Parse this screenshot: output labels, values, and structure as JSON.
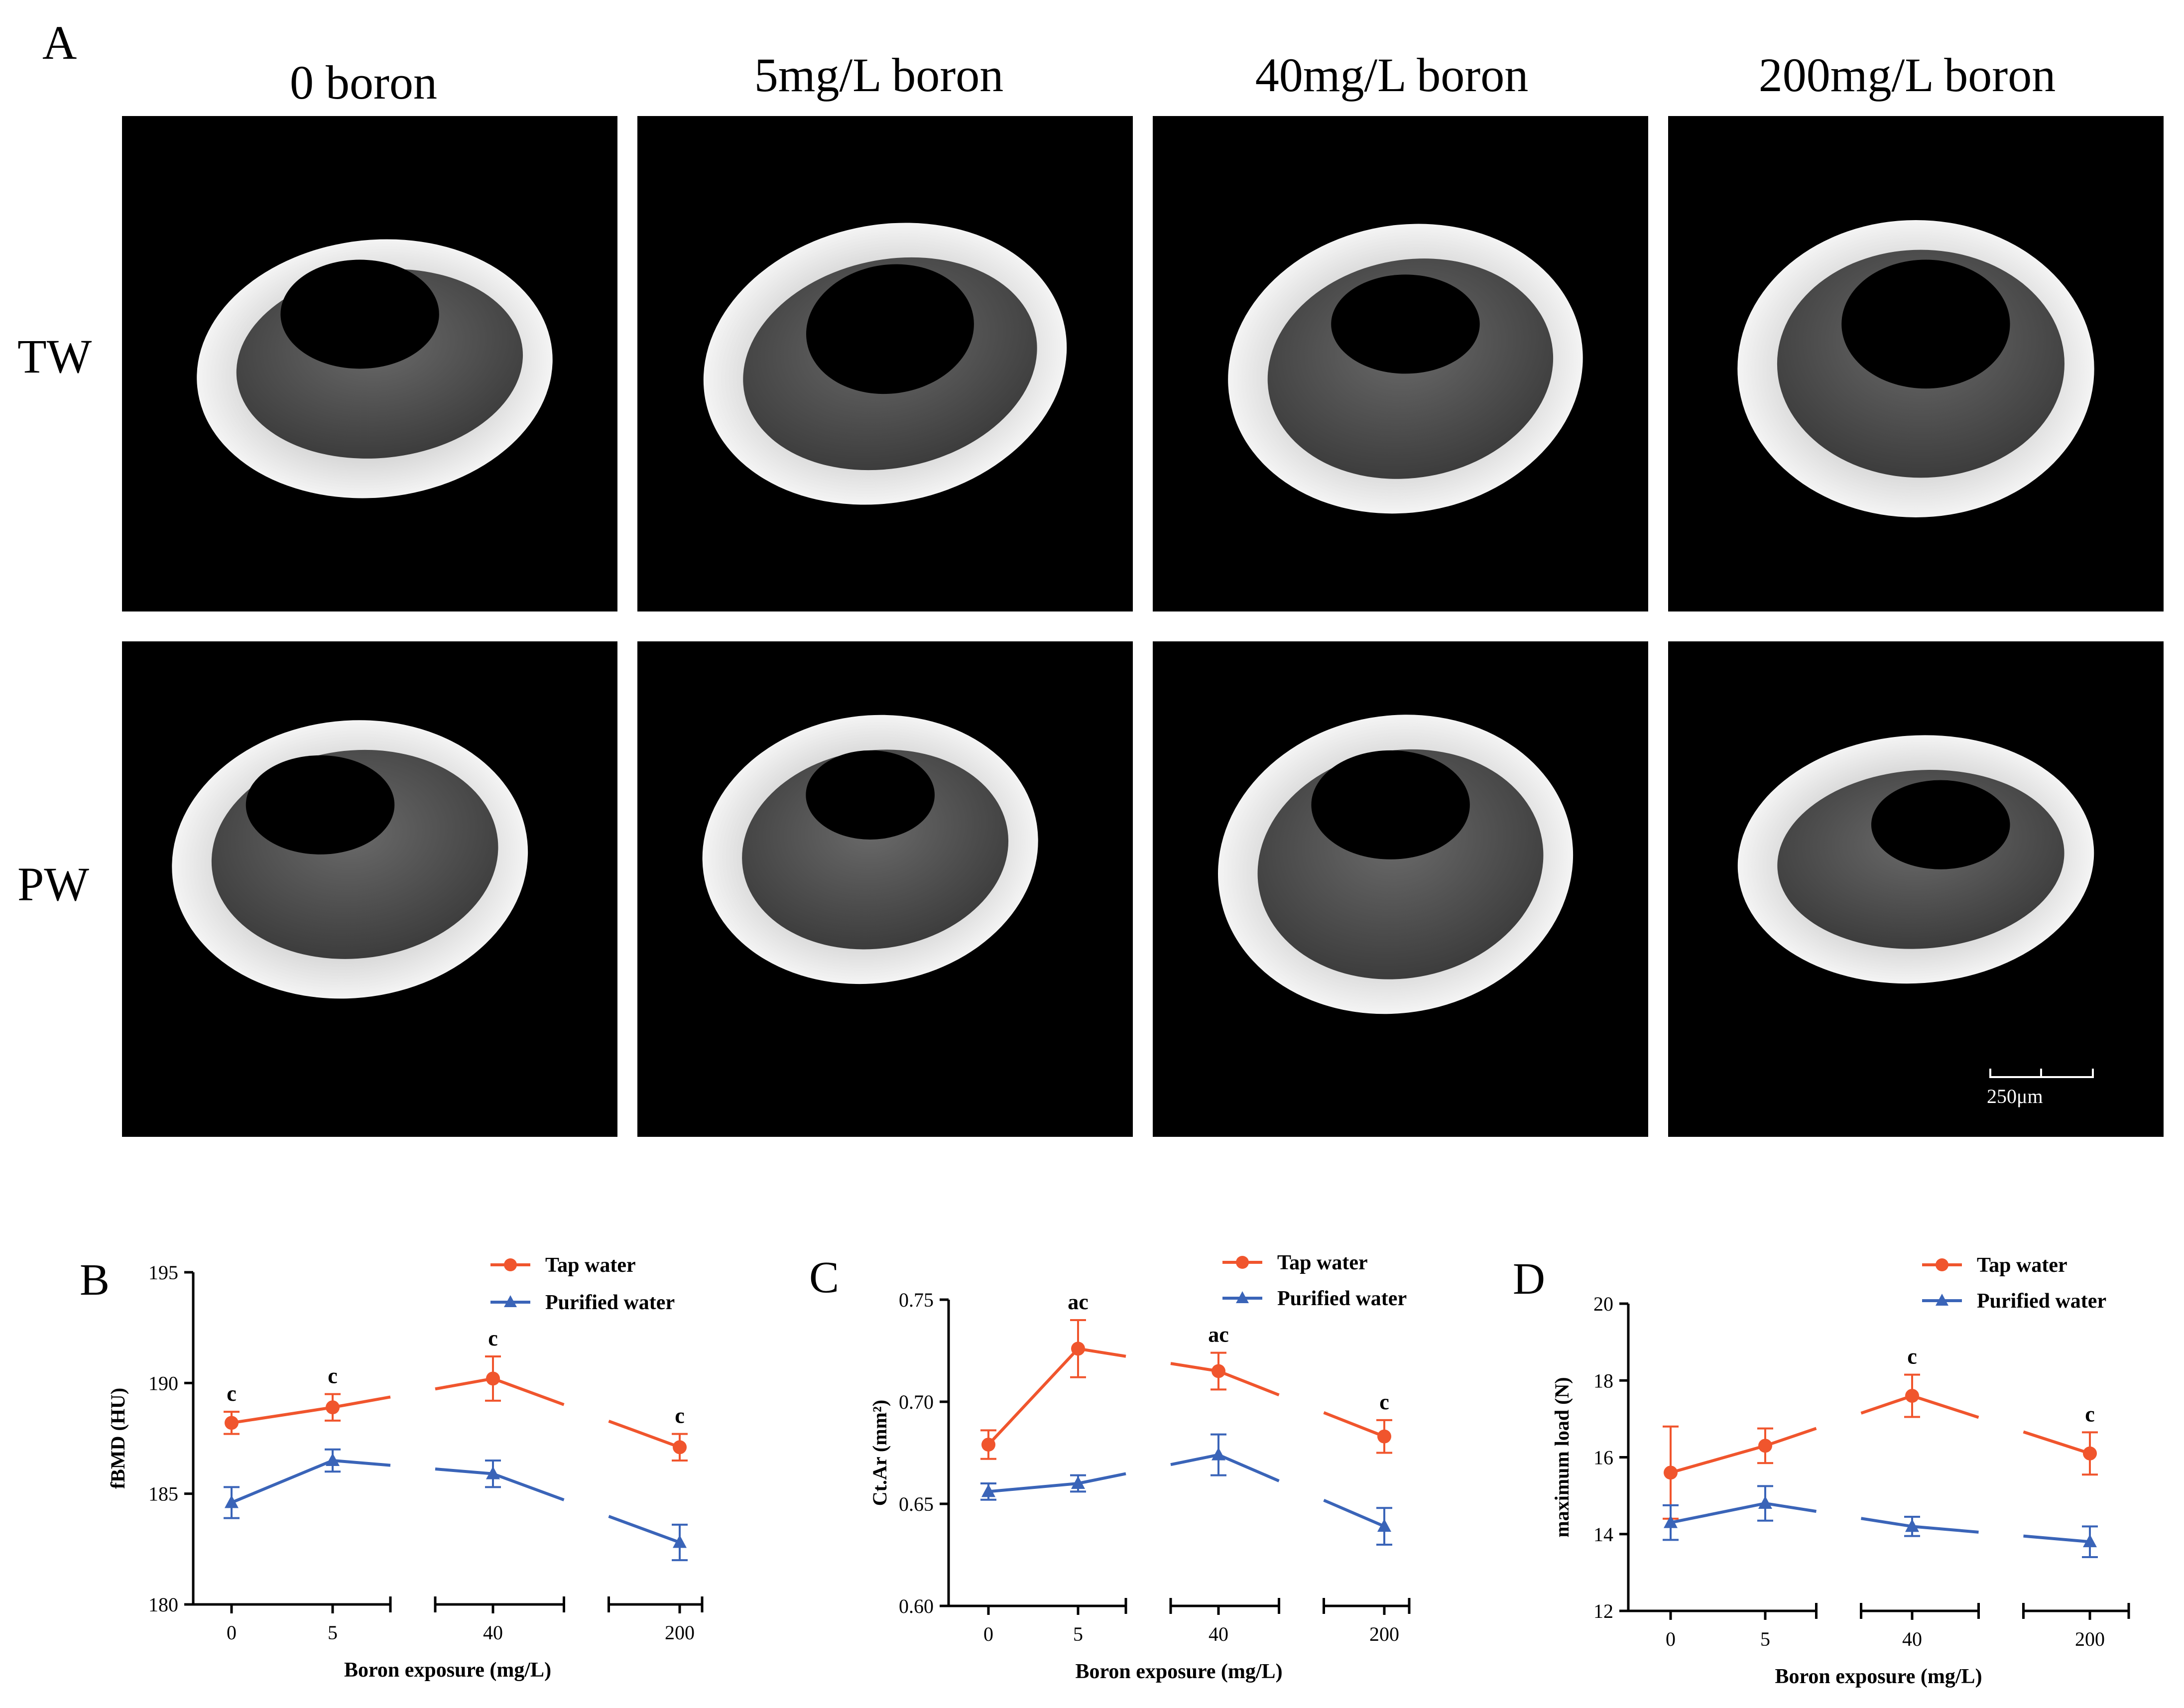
{
  "panel_a": {
    "letter": "A",
    "columns": [
      "0 boron",
      "5mg/L boron",
      "40mg/L boron",
      "200mg/L boron"
    ],
    "rows": [
      "TW",
      "PW"
    ],
    "scale_bar_label": "250μm"
  },
  "colors": {
    "tap": "#f0552d",
    "purified": "#3a64b8",
    "image_bg": "#000000"
  },
  "chart_data": [
    {
      "panel": "B",
      "type": "line",
      "ylabel": "fBMD (HU)",
      "xlabel": "Boron exposure (mg/L)",
      "categories": [
        "0",
        "5",
        "40",
        "200"
      ],
      "ylim": [
        180,
        195
      ],
      "yticks": [
        "180",
        "185",
        "190",
        "195"
      ],
      "legend": [
        "Tap water",
        "Purified water"
      ],
      "series": [
        {
          "name": "Tap water",
          "values": [
            188.2,
            188.9,
            190.2,
            187.1
          ],
          "errors": [
            0.5,
            0.6,
            1.0,
            0.6
          ],
          "annotations": [
            "c",
            "c",
            "c",
            "c"
          ]
        },
        {
          "name": "Purified water",
          "values": [
            184.6,
            186.5,
            185.9,
            182.8
          ],
          "errors": [
            0.7,
            0.5,
            0.6,
            0.8
          ],
          "annotations": [
            "",
            "",
            "",
            ""
          ]
        }
      ]
    },
    {
      "panel": "C",
      "type": "line",
      "ylabel": "Ct.Ar (mm²)",
      "xlabel": "Boron exposure (mg/L)",
      "categories": [
        "0",
        "5",
        "40",
        "200"
      ],
      "ylim": [
        0.6,
        0.75
      ],
      "yticks": [
        "0.60",
        "0.65",
        "0.70",
        "0.75"
      ],
      "legend": [
        "Tap water",
        "Purified water"
      ],
      "series": [
        {
          "name": "Tap water",
          "values": [
            0.679,
            0.726,
            0.715,
            0.683
          ],
          "errors": [
            0.007,
            0.014,
            0.009,
            0.008
          ],
          "annotations": [
            "",
            "ac",
            "ac",
            "c"
          ]
        },
        {
          "name": "Purified water",
          "values": [
            0.656,
            0.66,
            0.674,
            0.639
          ],
          "errors": [
            0.004,
            0.004,
            0.01,
            0.009
          ],
          "annotations": [
            "",
            "",
            "",
            ""
          ]
        }
      ]
    },
    {
      "panel": "D",
      "type": "line",
      "ylabel": "maximum load (N)",
      "xlabel": "Boron exposure (mg/L)",
      "categories": [
        "0",
        "5",
        "40",
        "200"
      ],
      "ylim": [
        12,
        20
      ],
      "yticks": [
        "12",
        "14",
        "16",
        "18",
        "20"
      ],
      "legend": [
        "Tap water",
        "Purified water"
      ],
      "series": [
        {
          "name": "Tap water",
          "values": [
            15.6,
            16.3,
            17.6,
            16.1
          ],
          "errors": [
            1.2,
            0.45,
            0.55,
            0.55
          ],
          "annotations": [
            "",
            "",
            "c",
            "c"
          ]
        },
        {
          "name": "Purified water",
          "values": [
            14.3,
            14.8,
            14.2,
            13.8
          ],
          "errors": [
            0.45,
            0.45,
            0.25,
            0.4
          ],
          "annotations": [
            "",
            "",
            "",
            ""
          ]
        }
      ]
    }
  ]
}
